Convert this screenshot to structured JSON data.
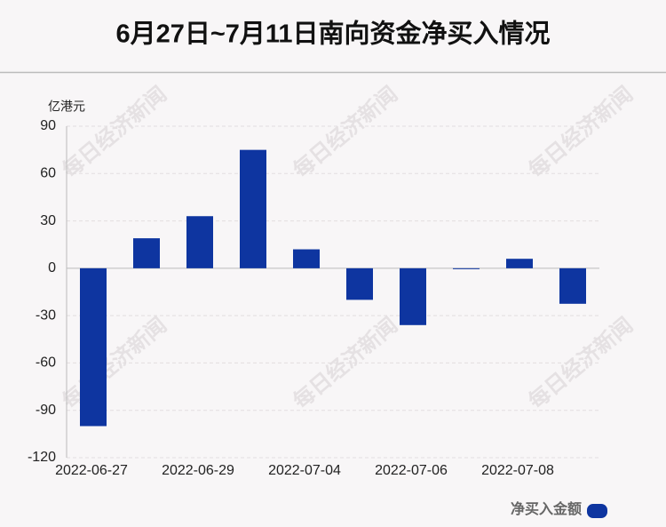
{
  "chart_data": {
    "type": "bar",
    "title": "6月27日~7月11日南向资金净买入情况",
    "y_unit": "亿港元",
    "watermark": "每日经济新闻",
    "categories": [
      "2022-06-27",
      null,
      "2022-06-29",
      null,
      "2022-07-04",
      null,
      "2022-07-06",
      null,
      "2022-07-08",
      null
    ],
    "series": [
      {
        "name": "净买入金额",
        "color": "#0e35a0",
        "values": [
          -100,
          19,
          33,
          75,
          12,
          -20,
          -36,
          -0.5,
          6,
          -22.5
        ]
      }
    ],
    "ylim": [
      -120,
      90
    ],
    "yticks": [
      -120,
      -90,
      -60,
      -30,
      0,
      30,
      60,
      90
    ],
    "grid": true,
    "legend": "bottom-right"
  }
}
